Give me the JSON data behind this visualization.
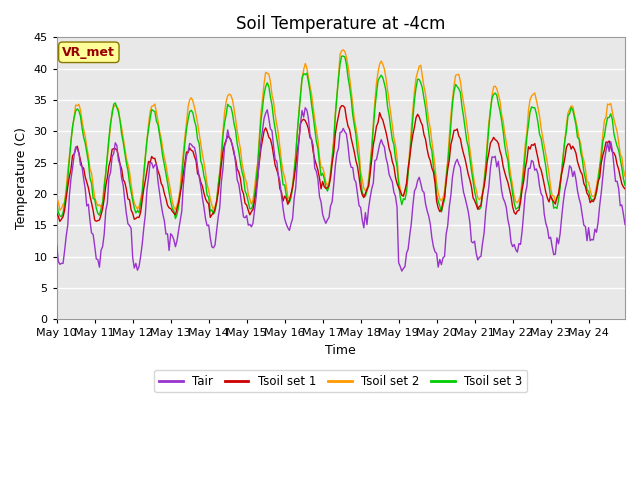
{
  "title": "Soil Temperature at -4cm",
  "xlabel": "Time",
  "ylabel": "Temperature (C)",
  "ylim": [
    0,
    45
  ],
  "yticks": [
    0,
    5,
    10,
    15,
    20,
    25,
    30,
    35,
    40,
    45
  ],
  "colors": {
    "Tair": "#9933cc",
    "Tsoil_set1": "#cc0000",
    "Tsoil_set2": "#ff9900",
    "Tsoil_set3": "#00cc00"
  },
  "legend_labels": [
    "Tair",
    "Tsoil set 1",
    "Tsoil set 2",
    "Tsoil set 3"
  ],
  "annotation_text": "VR_met",
  "annotation_color": "#990000",
  "annotation_bg": "#ffff99",
  "plot_bg": "#e8e8e8",
  "grid_color": "#ffffff",
  "title_fontsize": 12,
  "axis_label_fontsize": 9,
  "tick_fontsize": 8,
  "figsize": [
    6.4,
    4.8
  ],
  "dpi": 100
}
